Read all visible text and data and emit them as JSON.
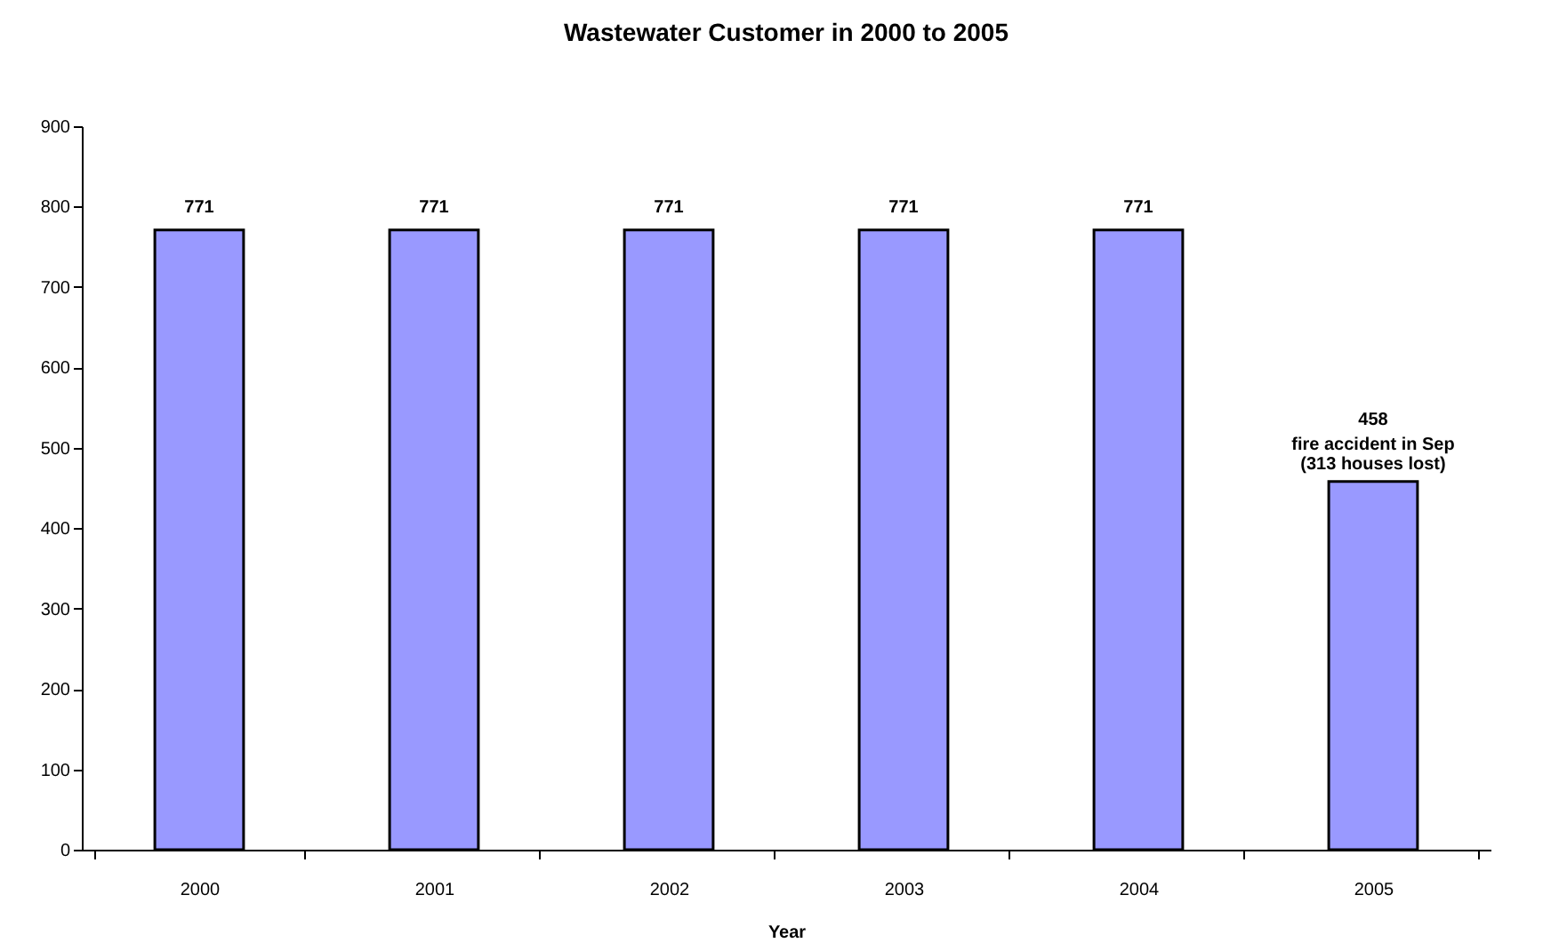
{
  "chart_data": {
    "type": "bar",
    "title": "Wastewater Customer in 2000 to 2005",
    "xlabel": "Year",
    "categories": [
      "2000",
      "2001",
      "2002",
      "2003",
      "2004",
      "2005"
    ],
    "values": [
      771,
      771,
      771,
      771,
      771,
      458
    ],
    "color": "#9999ff",
    "ylim": [
      0,
      900
    ],
    "yticks": [
      0,
      100,
      200,
      300,
      400,
      500,
      600,
      700,
      800,
      900
    ],
    "grid": false,
    "data_labels": true,
    "annotations": [
      {
        "text": "fire accident in Sep\n(313 houses lost)",
        "x": "2005",
        "y": 458
      }
    ]
  }
}
